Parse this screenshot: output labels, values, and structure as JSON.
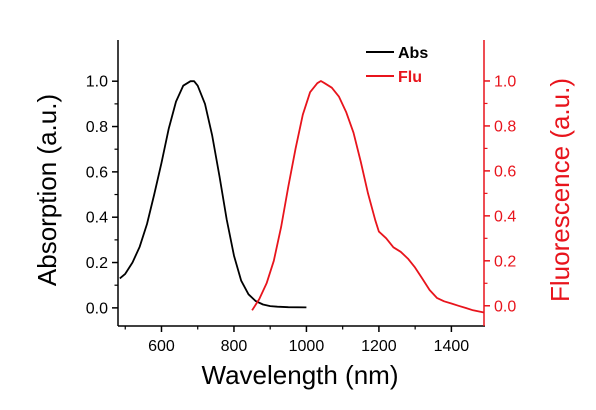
{
  "chart_data": {
    "type": "line",
    "xlabel": "Wavelength (nm)",
    "ylabel_left": "Absorption (a.u.)",
    "ylabel_right": "Fluorescence (a.u.)",
    "xlim": [
      480,
      1490
    ],
    "ylim_left": [
      -0.08,
      1.12
    ],
    "ylim_right": [
      -0.09,
      1.12
    ],
    "x_ticks": [
      600,
      800,
      1000,
      1200,
      1400
    ],
    "x_minor_ticks": [
      500,
      700,
      900,
      1100,
      1300
    ],
    "y_ticks_left": [
      0.0,
      0.2,
      0.4,
      0.6,
      0.8,
      1.0
    ],
    "y_ticks_right": [
      0.0,
      0.2,
      0.4,
      0.6,
      0.8,
      1.0
    ],
    "grid": false,
    "legend_position": "top-right",
    "colors": {
      "left_axis": "#000000",
      "right_axis": "#e8141c"
    },
    "series": [
      {
        "name": "Abs",
        "axis": "left",
        "color": "#000000",
        "x": [
          485,
          500,
          520,
          540,
          560,
          580,
          600,
          620,
          640,
          660,
          680,
          690,
          700,
          720,
          740,
          760,
          780,
          800,
          820,
          840,
          860,
          880,
          900,
          920,
          950,
          1000
        ],
        "y": [
          0.13,
          0.15,
          0.2,
          0.27,
          0.37,
          0.5,
          0.64,
          0.79,
          0.91,
          0.98,
          1.0,
          1.0,
          0.98,
          0.9,
          0.76,
          0.58,
          0.39,
          0.23,
          0.12,
          0.06,
          0.03,
          0.015,
          0.008,
          0.005,
          0.003,
          0.002
        ]
      },
      {
        "name": "Flu",
        "axis": "right",
        "color": "#e8141c",
        "x": [
          850,
          870,
          890,
          910,
          930,
          950,
          970,
          990,
          1010,
          1030,
          1040,
          1050,
          1070,
          1090,
          1110,
          1130,
          1150,
          1170,
          1190,
          1200,
          1220,
          1240,
          1260,
          1280,
          1300,
          1320,
          1340,
          1360,
          1380,
          1400,
          1420,
          1440,
          1460,
          1490
        ],
        "y": [
          -0.02,
          0.03,
          0.1,
          0.2,
          0.35,
          0.53,
          0.7,
          0.85,
          0.95,
          0.99,
          1.0,
          0.99,
          0.97,
          0.93,
          0.86,
          0.77,
          0.64,
          0.5,
          0.38,
          0.33,
          0.3,
          0.26,
          0.24,
          0.21,
          0.17,
          0.12,
          0.07,
          0.035,
          0.02,
          0.01,
          0.0,
          -0.01,
          -0.02,
          -0.03
        ]
      }
    ]
  }
}
